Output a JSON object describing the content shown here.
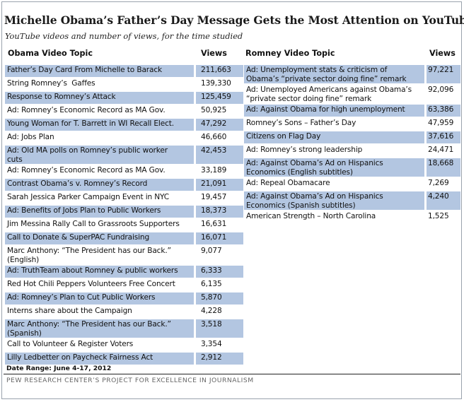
{
  "title": "Michelle Obama’s Father’s Day Message Gets the Most Attention on YouTube",
  "subtitle": "YouTube videos and number of views, for the time studied",
  "headers": {
    "obama_topic": "Obama Video Topic",
    "obama_views": "Views",
    "romney_topic": "Romney Video Topic",
    "romney_views": "Views"
  },
  "footer": {
    "date_range": "Date Range: June 4-17, 2012",
    "source": "PEW RESEARCH CENTER’S PROJECT FOR EXCELLENCE IN JOURNALISM"
  },
  "colors": {
    "row_shade": "#b3c6e1"
  },
  "chart_data": {
    "type": "table",
    "obama": [
      {
        "topic": "Father’s Day Card From Michelle to Barack",
        "views": "211,663"
      },
      {
        "topic": "String Romney’s  Gaffes",
        "views": "139,330"
      },
      {
        "topic": "Response to Romney’s Attack",
        "views": "125,459"
      },
      {
        "topic": "Ad: Romney’s Economic Record as MA Gov.",
        "views": "50,925"
      },
      {
        "topic": "Young Woman for T. Barrett in WI Recall Elect.",
        "views": "47,292"
      },
      {
        "topic": "Ad: Jobs Plan",
        "views": "46,660"
      },
      {
        "topic": "Ad: Old MA polls on Romney’s public worker\ncuts",
        "views": "42,453"
      },
      {
        "topic": "Ad: Romney’s Economic Record as MA Gov.",
        "views": "33,189"
      },
      {
        "topic": "Contrast Obama’s v. Romney’s Record",
        "views": "21,091"
      },
      {
        "topic": "Sarah Jessica Parker Campaign Event in NYC",
        "views": "19,457"
      },
      {
        "topic": "Ad: Benefits of Jobs Plan to Public Workers",
        "views": "18,373"
      },
      {
        "topic": "Jim Messina Rally Call to Grassroots Supporters",
        "views": "16,631"
      },
      {
        "topic": "Call to Donate & SuperPAC Fundraising",
        "views": "16,071"
      },
      {
        "topic": "Marc Anthony: “The President has our Back.”\n(English)",
        "views": "9,077"
      },
      {
        "topic": "Ad: TruthTeam about Romney & public workers",
        "views": "6,333"
      },
      {
        "topic": "Red Hot Chili Peppers Volunteers Free Concert",
        "views": "6,135"
      },
      {
        "topic": "Ad: Romney’s Plan to Cut Public Workers",
        "views": "5,870"
      },
      {
        "topic": "Interns share about the Campaign",
        "views": "4,228"
      },
      {
        "topic": "Marc Anthony: “The President has our Back.”\n(Spanish)",
        "views": "3,518"
      },
      {
        "topic": "Call to Volunteer & Register Voters",
        "views": "3,354"
      },
      {
        "topic": "Lilly Ledbetter on Paycheck Fairness Act",
        "views": "2,912"
      }
    ],
    "romney": [
      {
        "topic": "Ad: Unemployment stats & criticism of\nObama’s “private sector doing fine” remark",
        "views": "97,221"
      },
      {
        "topic": "Ad: Unemployed Americans against Obama’s\n“private sector doing fine” remark",
        "views": "92,096"
      },
      {
        "topic": "Ad: Against Obama for high unemployment",
        "views": "63,386"
      },
      {
        "topic": "Romney’s Sons – Father’s Day",
        "views": "47,959"
      },
      {
        "topic": "Citizens on Flag Day",
        "views": "37,616"
      },
      {
        "topic": "Ad: Romney’s strong leadership",
        "views": "24,471"
      },
      {
        "topic": "Ad: Against Obama’s Ad on Hispanics\nEconomics (English subtitles)",
        "views": "18,668"
      },
      {
        "topic": "Ad: Repeal Obamacare",
        "views": "7,269"
      },
      {
        "topic": "Ad: Against Obama’s Ad on Hispanics\nEconomics (Spanish subtitles)",
        "views": "4,240"
      },
      {
        "topic": "American Strength – North Carolina",
        "views": "1,525"
      }
    ]
  }
}
